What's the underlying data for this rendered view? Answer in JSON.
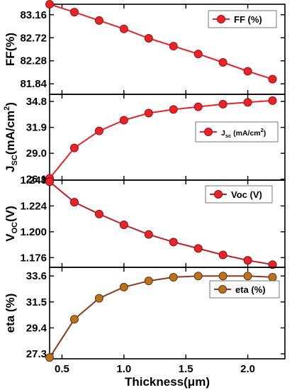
{
  "chart_data": {
    "type": "line",
    "layout": "stacked panels with shared x axis",
    "x": [
      0.4,
      0.6,
      0.8,
      1.0,
      1.2,
      1.4,
      1.6,
      1.8,
      2.0,
      2.2
    ],
    "xlabel_main": "Thickness(",
    "xlabel_unit": "μm",
    "xlabel_close": ")",
    "xlim": [
      0.4,
      2.3
    ],
    "xticks": [
      0.5,
      1.0,
      1.5,
      2.0
    ],
    "xtick_labels": [
      "0.5",
      "1.0",
      "1.5",
      "2.0"
    ],
    "grid": false,
    "panels": [
      {
        "id": "ff",
        "ylabel": "FF(%)",
        "ylim": [
          81.64,
          83.36
        ],
        "yticks": [
          81.84,
          82.28,
          82.72,
          83.16
        ],
        "ytick_labels": [
          "81.84",
          "82.28",
          "82.72",
          "83.16"
        ],
        "legend_label": "FF (%)",
        "legend_position": "top-right",
        "line_color": "#e8242a",
        "marker_color": "#e8242a",
        "marker_edge": "#a01010",
        "values": [
          83.36,
          83.21,
          83.05,
          82.89,
          82.71,
          82.56,
          82.41,
          82.25,
          82.08,
          81.93
        ]
      },
      {
        "id": "jsc",
        "ylabel_main": "J",
        "ylabel_sub": "SC",
        "ylabel_unit": "(mA/cm",
        "ylabel_sup": "2",
        "ylabel_close": ")",
        "ylim": [
          26.0,
          35.6
        ],
        "yticks": [
          26.1,
          29.0,
          31.9,
          34.8
        ],
        "ytick_labels": [
          "26.1",
          "29.0",
          "31.9",
          "34.8"
        ],
        "legend_main": "J",
        "legend_sub": "sc",
        "legend_unit": " (mA/cm",
        "legend_sup": "2",
        "legend_close": ")",
        "legend_position": "center-right",
        "line_color": "#e8242a",
        "marker_color": "#e8242a",
        "marker_edge": "#a01010",
        "values": [
          26.2,
          29.6,
          31.5,
          32.7,
          33.5,
          33.9,
          34.2,
          34.5,
          34.7,
          34.9
        ]
      },
      {
        "id": "voc",
        "ylabel_main": "V",
        "ylabel_sub": "OC",
        "ylabel_unit": "(V)",
        "ylim": [
          1.167,
          1.248
        ],
        "yticks": [
          1.176,
          1.2,
          1.224,
          1.248
        ],
        "ytick_labels": [
          "1.176",
          "1.200",
          "1.224",
          "1.248"
        ],
        "legend_label": "Voc (V)",
        "legend_position": "top-right",
        "line_color": "#c0202a",
        "marker_color": "#e8242a",
        "marker_edge": "#8a1010",
        "values": [
          1.2465,
          1.2275,
          1.2165,
          1.2065,
          1.1975,
          1.1905,
          1.1845,
          1.1785,
          1.1735,
          1.1695
        ]
      },
      {
        "id": "eta",
        "ylabel": "eta (%)",
        "ylim": [
          26.9,
          34.3
        ],
        "yticks": [
          27.3,
          29.4,
          31.5,
          33.6
        ],
        "ytick_labels": [
          "27.3",
          "29.4",
          "31.5",
          "33.6"
        ],
        "legend_label": "eta (%)",
        "legend_position": "top-right",
        "line_color": "#8b3a1f",
        "marker_color": "#b8741a",
        "marker_edge": "#6b3010",
        "values": [
          27.0,
          30.1,
          31.8,
          32.7,
          33.2,
          33.5,
          33.6,
          33.6,
          33.6,
          33.5
        ]
      }
    ]
  }
}
